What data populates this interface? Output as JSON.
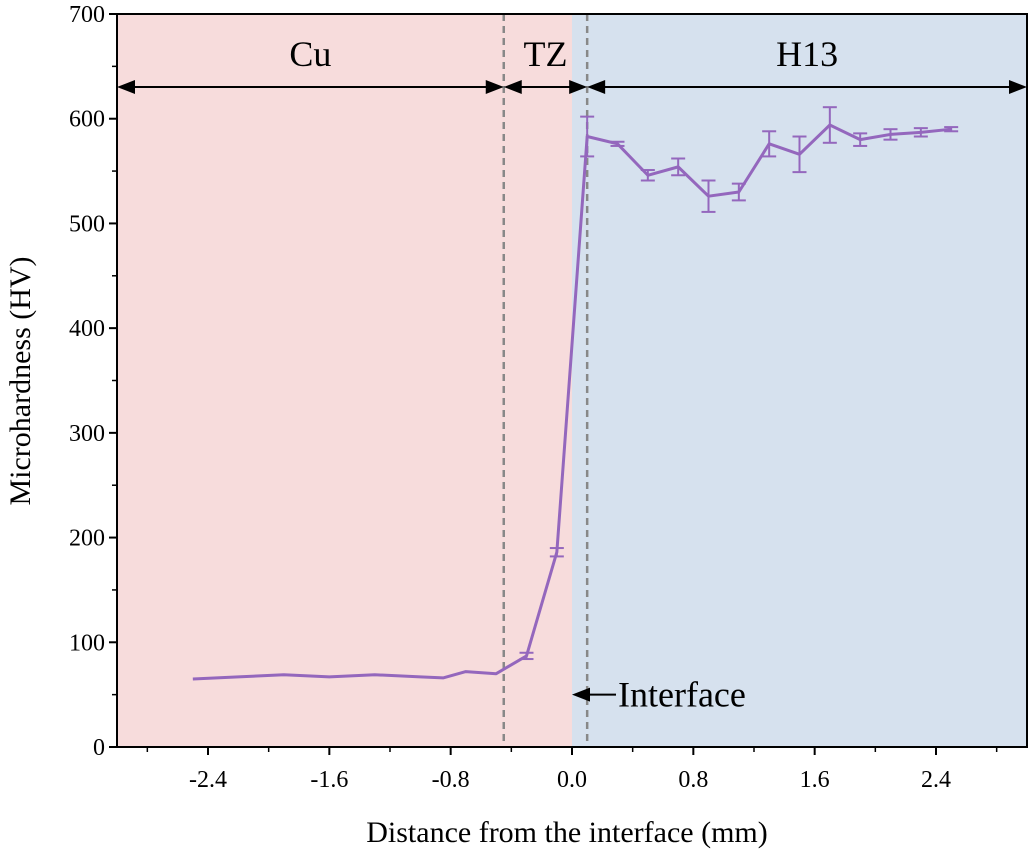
{
  "chart_data": {
    "type": "line",
    "title": "",
    "xlabel": "Distance from the interface (mm)",
    "ylabel": "Microhardness (HV)",
    "xlim": [
      -3.0,
      3.0
    ],
    "ylim": [
      0,
      700
    ],
    "x_ticks": [
      -2.4,
      -1.6,
      -0.8,
      0.0,
      0.8,
      1.6,
      2.4
    ],
    "x_tick_labels": [
      "-2.4",
      "-1.6",
      "-0.8",
      "0.0",
      "0.8",
      "1.6",
      "2.4"
    ],
    "y_ticks": [
      0,
      100,
      200,
      300,
      400,
      500,
      600,
      700
    ],
    "y_tick_labels": [
      "0",
      "100",
      "200",
      "300",
      "400",
      "500",
      "600",
      "700"
    ],
    "grid": false,
    "colors": {
      "line": "#9467bd",
      "cu_region": "#f7dcdc",
      "h13_region": "#d6e1ee",
      "boundary": "#888888"
    },
    "regions": [
      {
        "label": "Cu",
        "x_start": -3.0,
        "x_end": -0.45
      },
      {
        "label": "TZ",
        "x_start": -0.45,
        "x_end": 0.1
      },
      {
        "label": "H13",
        "x_start": 0.1,
        "x_end": 3.0
      }
    ],
    "shaded_regions": [
      {
        "x_start": -3.0,
        "x_end": 0.0,
        "color": "#f7dcdc"
      },
      {
        "x_start": 0.0,
        "x_end": 3.0,
        "color": "#d6e1ee"
      }
    ],
    "boundary_lines": [
      -0.45,
      0.1
    ],
    "annotation": {
      "text": "Interface",
      "x": 0.0,
      "y": 50
    },
    "series": [
      {
        "x": [
          -2.5,
          -2.2,
          -1.9,
          -1.6,
          -1.3,
          -1.0,
          -0.85,
          -0.7,
          -0.5,
          -0.3,
          -0.1,
          0.1,
          0.3,
          0.5,
          0.7,
          0.9,
          1.1,
          1.3,
          1.5,
          1.7,
          1.9,
          2.1,
          2.3,
          2.5
        ],
        "y": [
          65,
          67,
          69,
          67,
          69,
          67,
          66,
          72,
          70,
          87,
          186,
          583,
          576,
          546,
          554,
          526,
          530,
          576,
          566,
          594,
          580,
          585,
          587,
          590
        ],
        "err": [
          0,
          0,
          0,
          0,
          0,
          0,
          0,
          0,
          0,
          3,
          4,
          19,
          2,
          5,
          8,
          15,
          8,
          12,
          17,
          17,
          6,
          5,
          4,
          2
        ]
      }
    ]
  }
}
